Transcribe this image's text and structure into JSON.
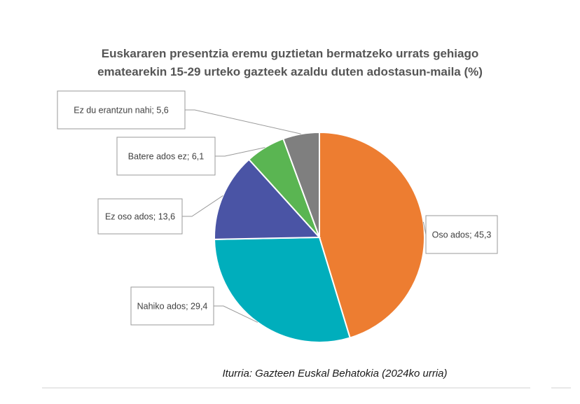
{
  "chart_data": {
    "type": "pie",
    "title_lines": [
      "Euskararen presentzia eremu guztietan bermatzeko urrats gehiago",
      "ematearekin 15-29 urteko gazteek azaldu duten adostasun-maila (%)"
    ],
    "slices": [
      {
        "label": "Oso ados",
        "value": 45.3,
        "display": "Oso ados; 45,3",
        "color": "#ED7D31"
      },
      {
        "label": "Nahiko ados",
        "value": 29.4,
        "display": "Nahiko ados; 29,4",
        "color": "#00AEBC"
      },
      {
        "label": "Ez oso ados",
        "value": 13.6,
        "display": "Ez oso ados; 13,6",
        "color": "#4A54A5"
      },
      {
        "label": "Batere ados ez",
        "value": 6.1,
        "display": "Batere ados ez; 6,1",
        "color": "#5AB552"
      },
      {
        "label": "Ez du erantzun nahi",
        "value": 5.6,
        "display": "Ez du erantzun nahi; 5,6",
        "color": "#7F7F7F"
      }
    ],
    "source": "Iturria: Gazteen Euskal Behatokia (2024ko urria)"
  }
}
